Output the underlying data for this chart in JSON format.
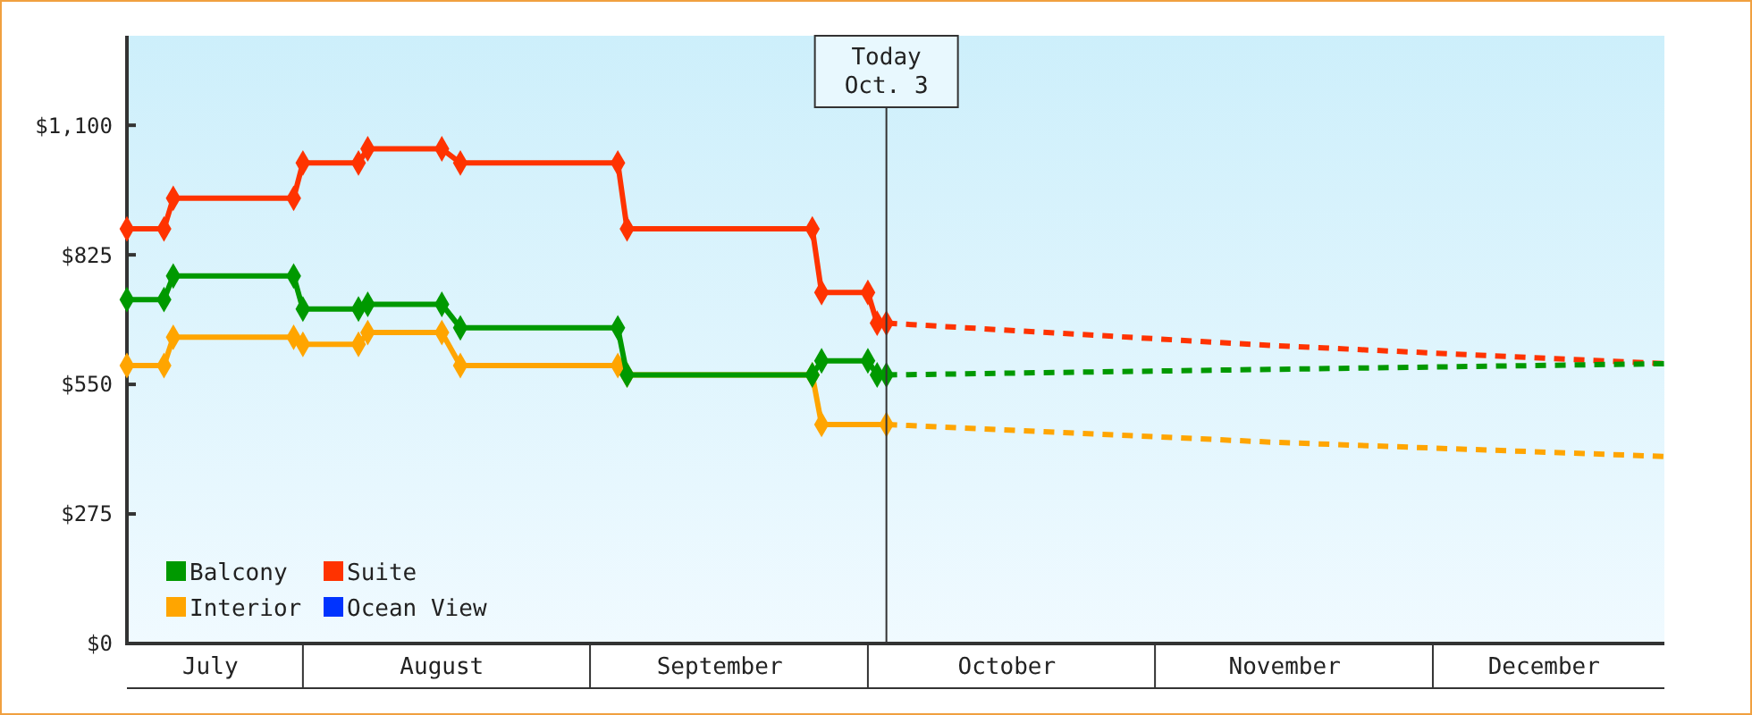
{
  "chart_data": {
    "type": "line",
    "xlim": [
      "--07-13",
      "--12-26"
    ],
    "xticks": [
      {
        "value": "--08-01",
        "label": null
      },
      {
        "value": "--09-01",
        "label": null
      },
      {
        "value": "--10-01",
        "label": null
      },
      {
        "value": "--11-01",
        "label": null
      },
      {
        "value": "--12-01",
        "label": null
      },
      {
        "value": "--07-22",
        "label": "July"
      },
      {
        "value": "--08-16",
        "label": "August"
      },
      {
        "value": "--09-15",
        "label": "September"
      },
      {
        "value": "--10-16",
        "label": "October"
      },
      {
        "value": "--11-15",
        "label": "November"
      },
      {
        "value": "--12-13",
        "label": "December"
      }
    ],
    "ylim": [
      0,
      1290
    ],
    "yticks": [
      {
        "value": 0,
        "label": "$0"
      },
      {
        "value": 275,
        "label": "$275"
      },
      {
        "value": 550,
        "label": "$550"
      },
      {
        "value": 825,
        "label": "$825"
      },
      {
        "value": 1100,
        "label": "$1,100"
      }
    ],
    "grid": false,
    "legend": "bottom left",
    "marker": "diamond",
    "ref_lines": [
      {
        "axis": "x",
        "value": "--10-03",
        "label": "Today\nOct. 3",
        "color": "#333333"
      }
    ],
    "series": [
      {
        "name": "Balcony",
        "color": "#009900",
        "x": [
          "--07-13",
          "--07-17",
          "--07-18",
          "--07-31",
          "--08-01",
          "--08-07",
          "--08-08",
          "--08-16",
          "--08-18",
          "--09-04",
          "--09-05",
          "--09-25",
          "--09-26",
          "--10-01",
          "--10-02",
          "--10-03"
        ],
        "values": [
          730,
          730,
          780,
          780,
          710,
          710,
          720,
          720,
          670,
          670,
          570,
          570,
          600,
          600,
          570,
          570
        ]
      },
      {
        "name": "Suite",
        "color": "#ff3300",
        "x": [
          "--07-13",
          "--07-17",
          "--07-18",
          "--07-31",
          "--08-01",
          "--08-07",
          "--08-08",
          "--08-16",
          "--08-18",
          "--09-04",
          "--09-05",
          "--09-25",
          "--09-26",
          "--10-01",
          "--10-02",
          "--10-03"
        ],
        "values": [
          880,
          880,
          945,
          945,
          1020,
          1020,
          1050,
          1050,
          1020,
          1020,
          880,
          880,
          745,
          745,
          680,
          680
        ]
      },
      {
        "name": "Interior",
        "color": "#ffa500",
        "x": [
          "--07-13",
          "--07-17",
          "--07-18",
          "--07-31",
          "--08-01",
          "--08-07",
          "--08-08",
          "--08-16",
          "--08-18",
          "--09-04",
          "--09-05",
          "--09-25",
          "--09-26",
          "--10-03"
        ],
        "values": [
          590,
          590,
          650,
          650,
          635,
          635,
          660,
          660,
          590,
          590,
          570,
          570,
          465,
          465
        ]
      },
      {
        "name": "Ocean View",
        "color": "#0033ff"
      },
      {
        "color": "#009900",
        "line_style": "dashed",
        "marker": "none",
        "x": [
          "--10-03",
          "--11-14",
          "--12-26"
        ],
        "values": [
          570,
          582,
          594
        ]
      },
      {
        "color": "#ff3300",
        "line_style": "dashed",
        "marker": "none",
        "x": [
          "--10-03",
          "--11-14",
          "--12-26"
        ],
        "values": [
          680,
          632,
          594
        ]
      },
      {
        "color": "#ffa500",
        "line_style": "dashed",
        "marker": "none",
        "x": [
          "--10-03",
          "--11-14",
          "--12-26"
        ],
        "values": [
          465,
          427,
          397
        ]
      }
    ]
  }
}
